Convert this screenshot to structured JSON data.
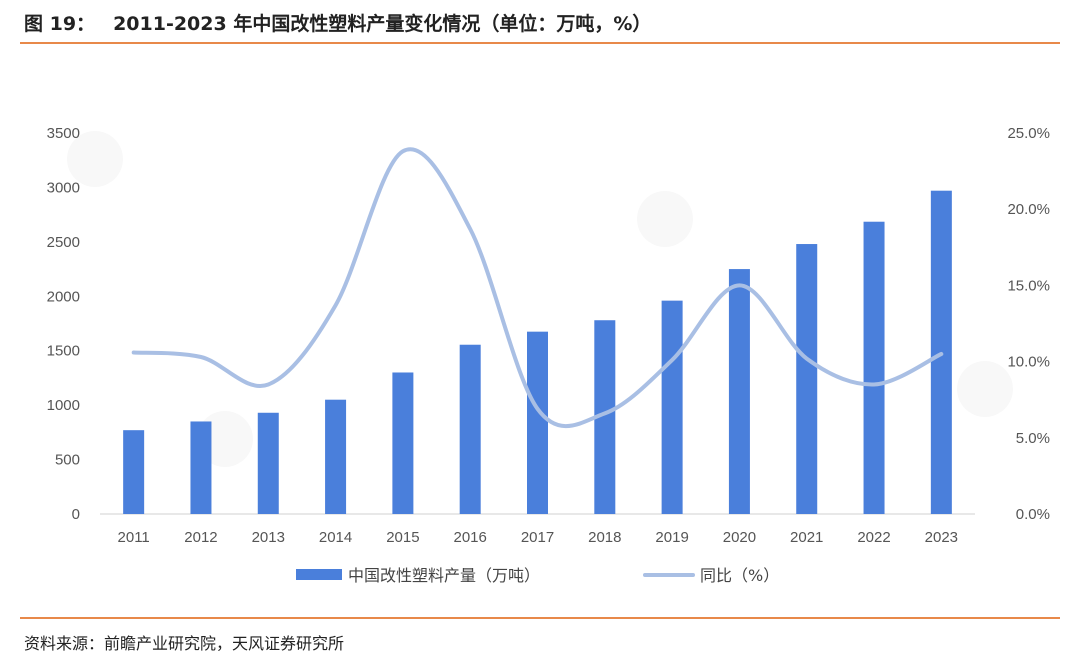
{
  "header": {
    "figure_number": "图 19：",
    "title": "2011-2023 年中国改性塑料产量变化情况（单位：万吨，%）"
  },
  "chart_data": {
    "type": "bar",
    "categories": [
      "2011",
      "2012",
      "2013",
      "2014",
      "2015",
      "2016",
      "2017",
      "2018",
      "2019",
      "2020",
      "2021",
      "2022",
      "2023"
    ],
    "series": [
      {
        "name": "中国改性塑料产量（万吨）",
        "type": "bar",
        "axis": "left",
        "color": "#4a7fdb",
        "values": [
          770,
          850,
          930,
          1050,
          1300,
          1555,
          1675,
          1780,
          1960,
          2250,
          2480,
          2685,
          2970
        ]
      },
      {
        "name": "同比（%）",
        "type": "line",
        "axis": "right",
        "color": "#a9bfe4",
        "values": [
          10.6,
          10.3,
          8.5,
          13.7,
          23.8,
          18.7,
          6.9,
          6.6,
          10.1,
          15.0,
          10.2,
          8.5,
          10.5
        ]
      }
    ],
    "y_left": {
      "min": 0,
      "max": 3500,
      "step": 500,
      "ticks": [
        "0",
        "500",
        "1000",
        "1500",
        "2000",
        "2500",
        "3000",
        "3500"
      ]
    },
    "y_right": {
      "min": 0,
      "max": 25,
      "step": 5,
      "ticks": [
        "0.0%",
        "5.0%",
        "10.0%",
        "15.0%",
        "20.0%",
        "25.0%"
      ]
    },
    "grid": false,
    "legend_position": "bottom"
  },
  "footer": {
    "source": "资料来源：前瞻产业研究院，天风证券研究所"
  }
}
